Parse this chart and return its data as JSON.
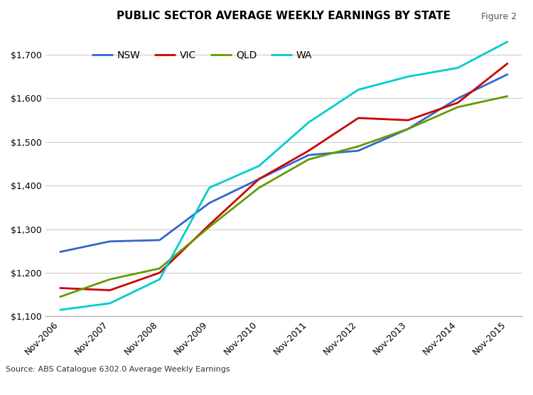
{
  "title": "PUBLIC SECTOR AVERAGE WEEKLY EARNINGS BY STATE",
  "figure_label": "Figure 2",
  "source": "Source: ABS Catalogue 6302.0 Average Weekly Earnings",
  "x_labels": [
    "Nov-2006",
    "Nov-2007",
    "Nov-2008",
    "Nov-2009",
    "Nov-2010",
    "Nov-2011",
    "Nov-2012",
    "Nov-2013",
    "Nov-2014",
    "Nov-2015"
  ],
  "x_values": [
    0,
    1,
    2,
    3,
    4,
    5,
    6,
    7,
    8,
    9
  ],
  "NSW": [
    1248,
    1272,
    1275,
    1360,
    1415,
    1470,
    1480,
    1530,
    1600,
    1655
  ],
  "VIC": [
    1165,
    1160,
    1200,
    1310,
    1415,
    1480,
    1555,
    1550,
    1590,
    1680
  ],
  "QLD": [
    1145,
    1185,
    1210,
    1305,
    1395,
    1460,
    1490,
    1530,
    1580,
    1605
  ],
  "WA": [
    1115,
    1130,
    1185,
    1395,
    1445,
    1545,
    1620,
    1650,
    1670,
    1730
  ],
  "colors": {
    "NSW": "#3366CC",
    "VIC": "#CC0000",
    "QLD": "#669900",
    "WA": "#00CCCC"
  },
  "ylim": [
    1100,
    1750
  ],
  "yticks": [
    1100,
    1200,
    1300,
    1400,
    1500,
    1600,
    1700
  ],
  "background_color": "#ffffff",
  "grid_color": "#cccccc",
  "title_fontsize": 11,
  "legend_fontsize": 10,
  "tick_fontsize": 9,
  "source_fontsize": 8,
  "line_width": 2.0,
  "bottom_bar_color": "#1F3864"
}
